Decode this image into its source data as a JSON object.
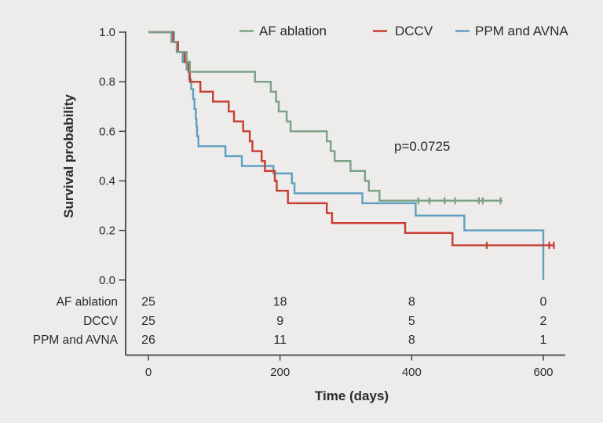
{
  "colors": {
    "background": "#edecea",
    "text": "#2b2b2b",
    "axis": "#454545",
    "af_ablation": "#7ba184",
    "dccv": "#c63d31",
    "ppm_avna": "#5f9fc0"
  },
  "annotation": {
    "p_value": "p=0.0725"
  },
  "legend": {
    "items": [
      {
        "label": "AF ablation",
        "color": "#7ba184"
      },
      {
        "label": "DCCV",
        "color": "#c63d31"
      },
      {
        "label": "PPM and AVNA",
        "color": "#5f9fc0"
      }
    ]
  },
  "chart_data": {
    "type": "line",
    "subtype": "kaplan-meier-step",
    "title": "",
    "xlabel": "Time (days)",
    "ylabel": "Survival probability",
    "xlim": [
      0,
      660
    ],
    "ylim": [
      0.0,
      1.0
    ],
    "x_ticks": [
      0,
      200,
      400,
      600
    ],
    "y_ticks": [
      1.0,
      0.8,
      0.6,
      0.4,
      0.2,
      0.0
    ],
    "grid": false,
    "legend_position": "top",
    "series": [
      {
        "name": "AF ablation",
        "color": "#7ba184",
        "steps": [
          [
            0,
            1.0
          ],
          [
            35,
            0.96
          ],
          [
            43,
            0.92
          ],
          [
            58,
            0.88
          ],
          [
            63,
            0.84
          ],
          [
            162,
            0.8
          ],
          [
            186,
            0.76
          ],
          [
            194,
            0.72
          ],
          [
            198,
            0.68
          ],
          [
            210,
            0.64
          ],
          [
            216,
            0.6
          ],
          [
            271,
            0.56
          ],
          [
            277,
            0.52
          ],
          [
            283,
            0.48
          ],
          [
            307,
            0.44
          ],
          [
            329,
            0.4
          ],
          [
            335,
            0.36
          ],
          [
            351,
            0.32
          ]
        ],
        "end_time": 538,
        "end_value": 0.32,
        "drops_to_zero_at_end": false,
        "censor_times": [
          410,
          427,
          450,
          466,
          502,
          508,
          535
        ]
      },
      {
        "name": "DCCV",
        "color": "#c63d31",
        "steps": [
          [
            0,
            1.0
          ],
          [
            37,
            0.96
          ],
          [
            45,
            0.92
          ],
          [
            55,
            0.88
          ],
          [
            61,
            0.84
          ],
          [
            63,
            0.8
          ],
          [
            79,
            0.76
          ],
          [
            98,
            0.72
          ],
          [
            122,
            0.68
          ],
          [
            130,
            0.64
          ],
          [
            144,
            0.6
          ],
          [
            154,
            0.56
          ],
          [
            158,
            0.52
          ],
          [
            172,
            0.48
          ],
          [
            177,
            0.44
          ],
          [
            192,
            0.4
          ],
          [
            195,
            0.36
          ],
          [
            212,
            0.31
          ],
          [
            271,
            0.27
          ],
          [
            279,
            0.23
          ],
          [
            390,
            0.19
          ],
          [
            462,
            0.14
          ]
        ],
        "end_time": 616,
        "end_value": 0.14,
        "drops_to_zero_at_end": false,
        "censor_times": [
          514,
          609,
          616
        ]
      },
      {
        "name": "PPM and AVNA",
        "color": "#5f9fc0",
        "steps": [
          [
            0,
            1.0
          ],
          [
            39,
            0.96
          ],
          [
            45,
            0.92
          ],
          [
            52,
            0.88
          ],
          [
            58,
            0.85
          ],
          [
            62,
            0.81
          ],
          [
            65,
            0.77
          ],
          [
            68,
            0.73
          ],
          [
            70,
            0.69
          ],
          [
            72,
            0.65
          ],
          [
            73,
            0.62
          ],
          [
            74,
            0.58
          ],
          [
            76,
            0.54
          ],
          [
            117,
            0.5
          ],
          [
            142,
            0.46
          ],
          [
            190,
            0.43
          ],
          [
            218,
            0.39
          ],
          [
            222,
            0.35
          ],
          [
            325,
            0.31
          ],
          [
            406,
            0.26
          ],
          [
            480,
            0.2
          ]
        ],
        "end_time": 600,
        "end_value": 0.0,
        "drops_to_zero_at_end": true,
        "censor_times": []
      }
    ],
    "risk_table": {
      "times": [
        0,
        200,
        400,
        600
      ],
      "rows": [
        {
          "label": "AF ablation",
          "values": [
            "25",
            "18",
            "8",
            "0"
          ]
        },
        {
          "label": "DCCV",
          "values": [
            "25",
            "9",
            "5",
            "2"
          ]
        },
        {
          "label": "PPM and AVNA",
          "values": [
            "26",
            "11",
            "8",
            "1"
          ]
        }
      ]
    }
  }
}
